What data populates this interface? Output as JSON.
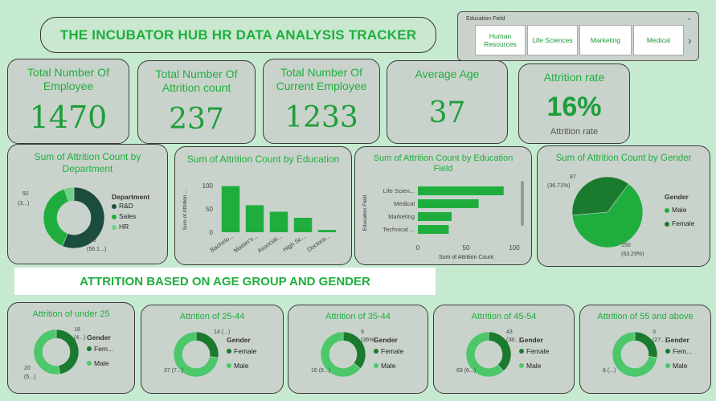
{
  "title": "THE INCUBATOR HUB HR DATA ANALYSIS TRACKER",
  "slicer": {
    "header": "Education Field",
    "options": [
      "Human Resources",
      "Life Sciences",
      "Marketing",
      "Medical"
    ]
  },
  "kpis": [
    {
      "label": "Total Number Of Employee",
      "value": "1470"
    },
    {
      "label": "Total Number Of Attrition count",
      "value": "237"
    },
    {
      "label": "Total Number Of Current Employee",
      "value": "1233"
    },
    {
      "label": "Average Age",
      "value": "37"
    },
    {
      "label": "Attrition rate",
      "value": "16%",
      "sublabel": "Attrition rate"
    }
  ],
  "section_label": "ATTRITION BASED ON AGE GROUP AND GENDER",
  "colors": {
    "dark": "#1b4d3e",
    "mid": "#1fae3e",
    "light": "#4cc76a",
    "darkgreen": "#1a7a2e",
    "bg": "#c6ead0"
  },
  "chart_data": [
    {
      "type": "pie",
      "variant": "donut",
      "title": "Sum of Attrition Count by Department",
      "legend_title": "Department",
      "categories": [
        "R&D",
        "Sales",
        "HR"
      ],
      "values": [
        133,
        92,
        12
      ],
      "labels": {
        "left": "92",
        "left2": "(3...)",
        "bottom": "133",
        "bottom2": "(56.1...)"
      }
    },
    {
      "type": "bar",
      "title": "Sum of Attrition Count by Education",
      "ylabel": "Sum of Attrition ...",
      "categories": [
        "Bachelo...",
        "Master's...",
        "Associat...",
        "High Sc...",
        "Doctora..."
      ],
      "values": [
        99,
        58,
        44,
        31,
        5
      ],
      "yticks": [
        "100",
        "50",
        "0"
      ],
      "ylim": [
        0,
        100
      ]
    },
    {
      "type": "bar",
      "orientation": "horizontal",
      "title": "Sum of Attrition Count by Education Field",
      "ylabel": "Education Field",
      "xlabel": "Sum of Attrition Count",
      "categories": [
        "Life Scien...",
        "Medical",
        "Marketing",
        "Technical ..."
      ],
      "values": [
        89,
        63,
        35,
        32
      ],
      "xticks": [
        "0",
        "50",
        "100"
      ],
      "xlim": [
        0,
        100
      ]
    },
    {
      "type": "pie",
      "title": "Sum of Attrition Count by Gender",
      "legend_title": "Gender",
      "categories": [
        "Male",
        "Female"
      ],
      "values": [
        150,
        87
      ],
      "labels": {
        "female": "87",
        "female_pct": "(36.71%)",
        "male": "150",
        "male_pct": "(63.29%)"
      }
    }
  ],
  "age_groups": [
    {
      "title": "Attrition of under 25",
      "female": 18,
      "male": 20,
      "top": "18",
      "top2": "(4...)",
      "bottom": "20",
      "bottom2": "(5...)",
      "legend": [
        "Fem...",
        "Male"
      ]
    },
    {
      "title": "Attrition of 25-44",
      "female": 14,
      "male": 37,
      "top": "14 (...)",
      "top2": "",
      "bottom": "37 (7...)",
      "bottom2": "",
      "legend": [
        "Female",
        "Male"
      ]
    },
    {
      "title": "Attrition of 35-44",
      "female": 9,
      "male": 16,
      "top": "9",
      "top2": "(36%)",
      "bottom": "16 (6...)",
      "bottom2": "",
      "legend": [
        "Female",
        "Male"
      ]
    },
    {
      "title": "Attrition of 45-54",
      "female": 43,
      "male": 69,
      "top": "43",
      "top2": "(38...)",
      "bottom": "69 (6...)",
      "bottom2": "",
      "legend": [
        "Female",
        "Male"
      ]
    },
    {
      "title": "Attrition of 55 and above",
      "female": 3,
      "male": 8,
      "top": "3",
      "top2": "(27...)",
      "bottom": "8 (...)",
      "bottom2": "",
      "legend": [
        "Fem...",
        "Male"
      ]
    }
  ],
  "age_legend_title": "Gender"
}
